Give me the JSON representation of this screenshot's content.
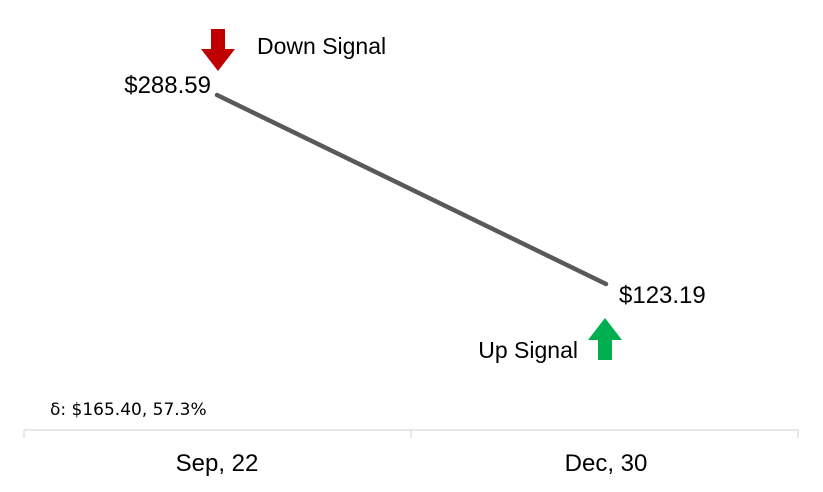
{
  "chart_data": {
    "type": "line",
    "title": "",
    "xlabel": "",
    "ylabel": "",
    "categories": [
      "Sep, 22",
      "Dec, 30"
    ],
    "values": [
      288.59,
      123.19
    ],
    "value_labels": [
      "$288.59",
      "$123.19"
    ],
    "grid": false,
    "line_color": "#595959",
    "annotations": {
      "down_signal": {
        "label": "Down Signal",
        "at": "Sep, 22",
        "direction": "down",
        "icon": "down-arrow-icon",
        "color": "#c00000"
      },
      "up_signal": {
        "label": "Up Signal",
        "at": "Dec, 30",
        "direction": "up",
        "icon": "up-arrow-icon",
        "color": "#00b050"
      },
      "delta": "δ: $165.40,  57.3%"
    }
  }
}
